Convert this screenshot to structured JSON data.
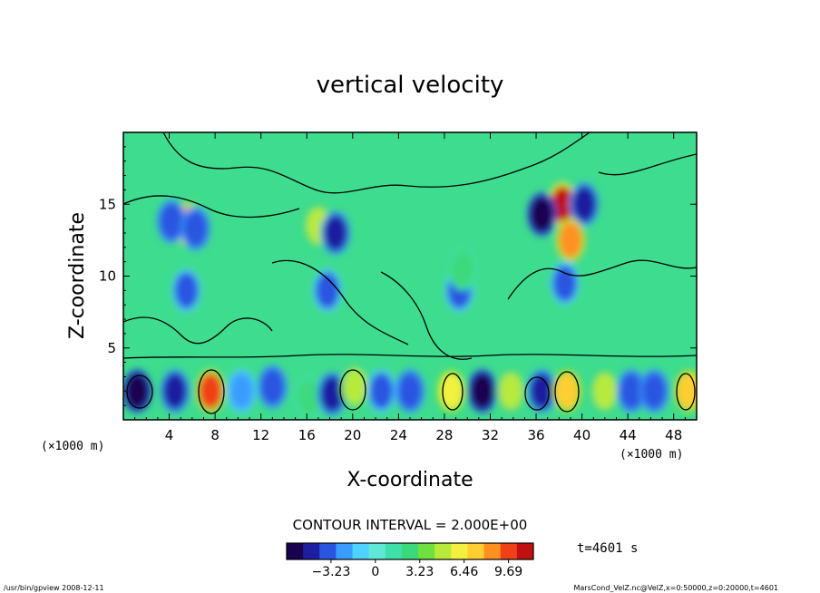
{
  "chart_data": {
    "type": "heatmap",
    "title": "vertical velocity",
    "xlabel": "X-coordinate",
    "ylabel": "Z-coordinate",
    "x_unit_left": "(×1000 m)",
    "x_unit_right": "(×1000 m)",
    "xlim": [
      0,
      50
    ],
    "ylim": [
      0,
      20
    ],
    "xticks": [
      4,
      8,
      12,
      16,
      20,
      24,
      28,
      32,
      36,
      40,
      44,
      48
    ],
    "yticks": [
      5,
      10,
      15
    ],
    "contour_interval": "CONTOUR INTERVAL = 2.000E+00",
    "time_label": "t=4601 s",
    "colorbar": {
      "range": [
        -6.46,
        11.5
      ],
      "tick_values": [
        -3.23,
        0,
        3.23,
        6.46,
        9.69
      ],
      "tick_labels": [
        "−3.23",
        "0",
        "3.23",
        "6.46",
        "9.69"
      ],
      "colors": [
        "#1a0050",
        "#1e1ea0",
        "#2a55e0",
        "#3a9cff",
        "#4fd2ff",
        "#5fe8d6",
        "#3fe0a8",
        "#3cd97a",
        "#6ee040",
        "#b8ea3c",
        "#f3f040",
        "#ffce30",
        "#ff9020",
        "#f04018",
        "#c01010"
      ]
    },
    "field_cells": [
      {
        "x": 1.2,
        "z": 2.0,
        "w": -5.5
      },
      {
        "x": 4.5,
        "z": 2.0,
        "w": -5.0
      },
      {
        "x": 7.6,
        "z": 2.0,
        "w": 9.5
      },
      {
        "x": 10.3,
        "z": 2.0,
        "w": -2.0
      },
      {
        "x": 13.0,
        "z": 2.3,
        "w": -3.5
      },
      {
        "x": 16.2,
        "z": 1.6,
        "w": 3.0
      },
      {
        "x": 18.2,
        "z": 1.8,
        "w": -4.5
      },
      {
        "x": 20.2,
        "z": 2.3,
        "w": 4.5
      },
      {
        "x": 22.5,
        "z": 2.0,
        "w": -3.0
      },
      {
        "x": 25.0,
        "z": 2.0,
        "w": -4.0
      },
      {
        "x": 28.6,
        "z": 2.0,
        "w": 6.5
      },
      {
        "x": 31.3,
        "z": 2.0,
        "w": -5.5
      },
      {
        "x": 33.8,
        "z": 2.0,
        "w": 5.5
      },
      {
        "x": 36.5,
        "z": 2.0,
        "w": -5.0
      },
      {
        "x": 38.7,
        "z": 2.0,
        "w": 7.5
      },
      {
        "x": 42.0,
        "z": 2.0,
        "w": 5.0
      },
      {
        "x": 44.3,
        "z": 2.0,
        "w": -4.0
      },
      {
        "x": 46.3,
        "z": 2.0,
        "w": -3.5
      },
      {
        "x": 49.3,
        "z": 2.0,
        "w": 7.0
      },
      {
        "x": 5.6,
        "z": 13.6,
        "w": 8.5
      },
      {
        "x": 4.2,
        "z": 13.8,
        "w": -4.0
      },
      {
        "x": 6.3,
        "z": 13.3,
        "w": -4.0
      },
      {
        "x": 5.5,
        "z": 9.0,
        "w": -3.0
      },
      {
        "x": 17.0,
        "z": 13.5,
        "w": 4.5
      },
      {
        "x": 18.5,
        "z": 13.0,
        "w": -4.5
      },
      {
        "x": 17.8,
        "z": 9.0,
        "w": -3.0
      },
      {
        "x": 29.3,
        "z": 9.0,
        "w": -3.0
      },
      {
        "x": 29.6,
        "z": 10.5,
        "w": 3.0
      },
      {
        "x": 38.3,
        "z": 15.0,
        "w": 10.5
      },
      {
        "x": 36.5,
        "z": 14.3,
        "w": -6.0
      },
      {
        "x": 40.2,
        "z": 15.0,
        "w": -5.0
      },
      {
        "x": 39.0,
        "z": 12.5,
        "w": 8.0
      },
      {
        "x": 38.5,
        "z": 9.5,
        "w": -3.0
      }
    ]
  },
  "footer": {
    "left": "/usr/bin/gpview   2008-12-11",
    "right": "MarsCond_VelZ.nc@VelZ,x=0:50000,z=0:20000,t=4601"
  }
}
